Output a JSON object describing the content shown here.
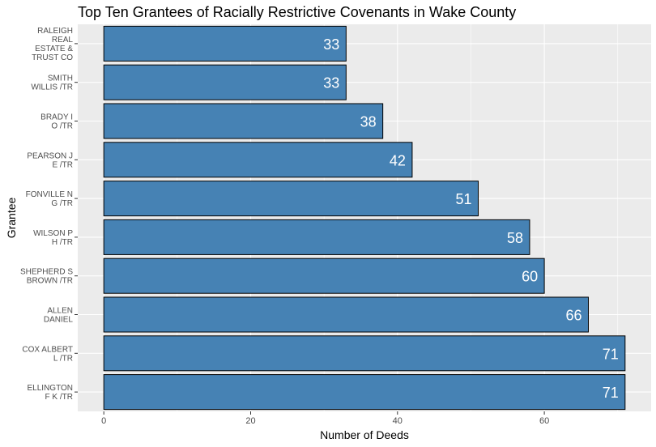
{
  "chart_data": {
    "type": "bar",
    "orientation": "horizontal",
    "title": "Top Ten Grantees of Racially Restrictive Covenants in Wake County",
    "xlabel": "Number of Deeds",
    "ylabel": "Grantee",
    "categories": [
      [
        "RALEIGH",
        "REAL",
        "ESTATE &",
        "TRUST CO"
      ],
      [
        "SMITH",
        "WILLIS /TR"
      ],
      [
        "BRADY I",
        "O /TR"
      ],
      [
        "PEARSON J",
        "E /TR"
      ],
      [
        "FONVILLE N",
        "G /TR"
      ],
      [
        "WILSON P",
        "H /TR"
      ],
      [
        "SHEPHERD S",
        "BROWN /TR"
      ],
      [
        "ALLEN",
        "DANIEL"
      ],
      [
        "COX ALBERT",
        "L /TR"
      ],
      [
        "ELLINGTON",
        "F K /TR"
      ]
    ],
    "values": [
      33,
      33,
      38,
      42,
      51,
      58,
      60,
      66,
      71,
      71
    ],
    "xticks": [
      0,
      20,
      40,
      60
    ],
    "xlim": [
      -3.55,
      74.55
    ],
    "grid": true,
    "bar_color": "#4682B4",
    "bar_outline": "#000000",
    "panel_background": "#EBEBEB"
  }
}
